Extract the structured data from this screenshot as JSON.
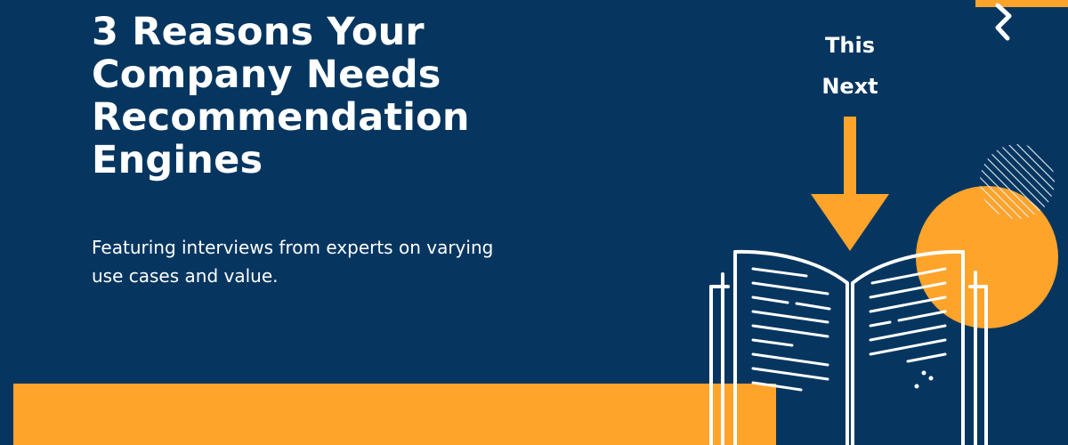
{
  "colors": {
    "background": "#063660",
    "accent": "#ffa42b",
    "text": "#ffffff"
  },
  "headline": {
    "title": "3 Reasons  Your\nCompany Needs\nRecommendation\nEngines",
    "subtitle": "Featuring interviews from experts on varying\nuse cases and value."
  },
  "callout": {
    "text": "This\nNext"
  },
  "icons": [
    "zigzag-icon",
    "down-arrow-icon",
    "open-book-icon",
    "hatched-circle-icon"
  ]
}
